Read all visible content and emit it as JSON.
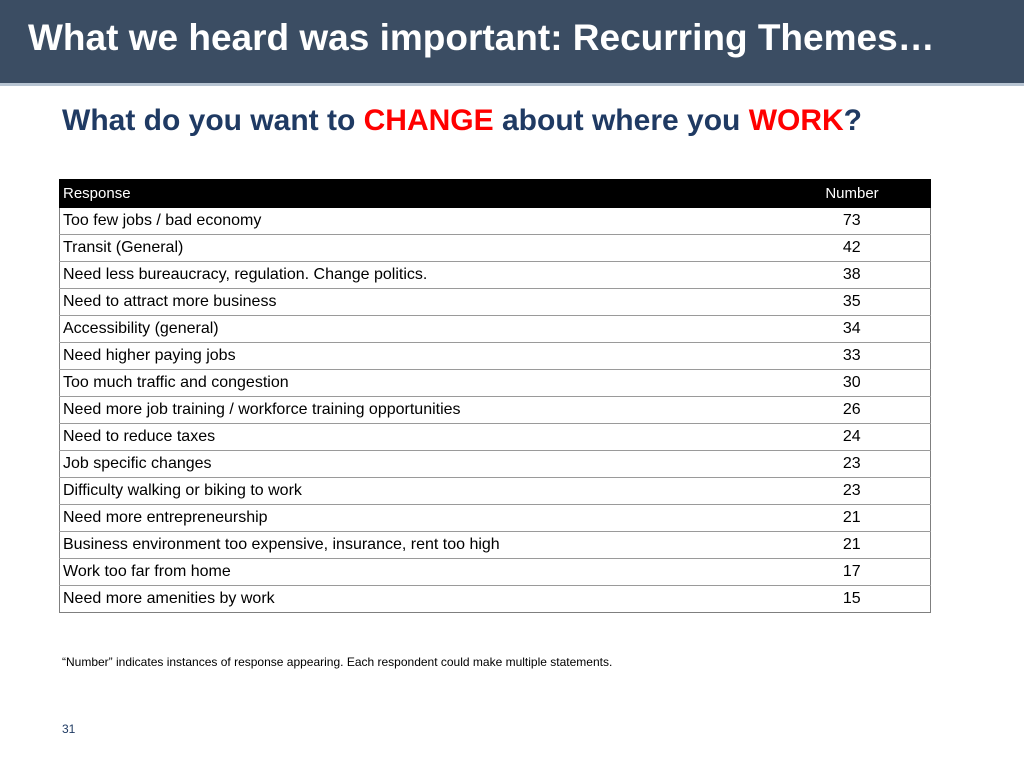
{
  "header": {
    "title": "What we heard was important: Recurring Themes…"
  },
  "question": {
    "part1": "What do you want to ",
    "emph1": "CHANGE",
    "part2": " about where you ",
    "emph2": "WORK",
    "part3": "?"
  },
  "table": {
    "headers": {
      "response": "Response",
      "number": "Number"
    },
    "rows": [
      {
        "response": "Too few jobs / bad economy",
        "number": "73"
      },
      {
        "response": "Transit (General)",
        "number": "42"
      },
      {
        "response": "Need less bureaucracy, regulation. Change politics.",
        "number": "38"
      },
      {
        "response": "Need to attract more business",
        "number": "35"
      },
      {
        "response": "Accessibility (general)",
        "number": "34"
      },
      {
        "response": "Need higher paying jobs",
        "number": "33"
      },
      {
        "response": "Too much traffic and congestion",
        "number": "30"
      },
      {
        "response": "Need more job training / workforce training opportunities",
        "number": "26"
      },
      {
        "response": "Need to reduce taxes",
        "number": "24"
      },
      {
        "response": "Job specific changes",
        "number": "23"
      },
      {
        "response": "Difficulty walking or biking to work",
        "number": "23"
      },
      {
        "response": "Need more entrepreneurship",
        "number": "21"
      },
      {
        "response": "Business environment too expensive, insurance, rent too high",
        "number": "21"
      },
      {
        "response": "Work too far from home",
        "number": "17"
      },
      {
        "response": "Need more amenities by work",
        "number": "15"
      }
    ]
  },
  "footnote": "“Number” indicates instances of response appearing. Each respondent could make multiple statements.",
  "page_number": "31",
  "colors": {
    "header_bg": "#3b4d63",
    "subtitle": "#1f3a63",
    "emphasis": "#ff0000",
    "table_header_bg": "#000000"
  }
}
